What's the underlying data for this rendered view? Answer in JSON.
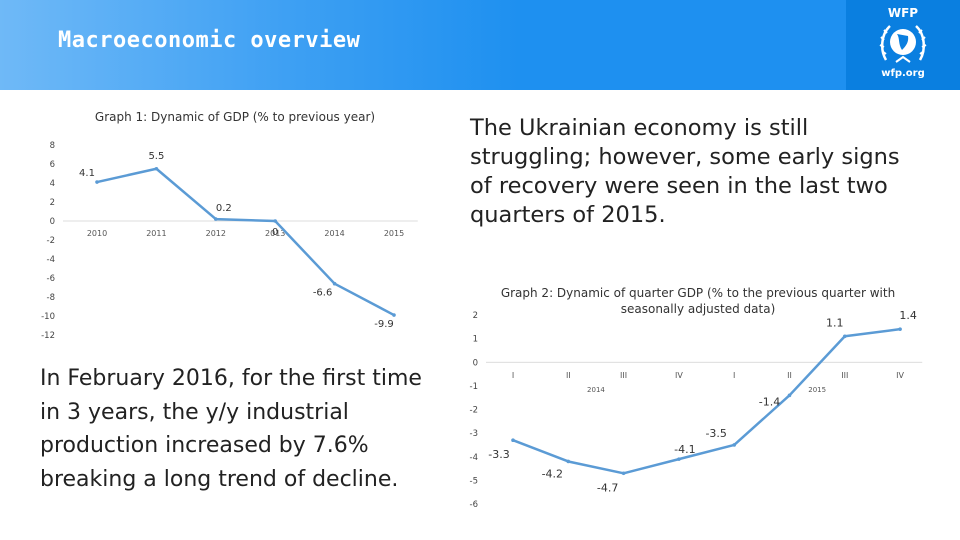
{
  "header": {
    "title": "Macroeconomic overview",
    "logo": {
      "name": "WFP",
      "url": "wfp.org",
      "icon": "wfp-emblem-icon"
    },
    "colors": {
      "bar": "#1e90f0",
      "logo_bg": "#0a7fe0"
    }
  },
  "text": {
    "summary": "The Ukrainian economy is still struggling; however, some early signs of recovery were seen in the last two quarters of 2015.",
    "industry": "In February 2016, for the first time in 3 years, the y/y industrial production increased by 7.6% breaking a long trend of decline."
  },
  "chart_data": [
    {
      "type": "line",
      "title": "Graph 1: Dynamic of GDP (% to previous year)",
      "categories": [
        "2010",
        "2011",
        "2012",
        "2013",
        "2014",
        "2015"
      ],
      "values": [
        4.1,
        5.5,
        0.2,
        0,
        -6.6,
        -9.9
      ],
      "data_labels": [
        "4.1",
        "5.5",
        "0.2",
        "0",
        "-6.6",
        "-9.9"
      ],
      "ylim": [
        -12,
        8
      ],
      "yticks": [
        "8",
        "6",
        "4",
        "2",
        "0",
        "-2",
        "-4",
        "-6",
        "-8",
        "-10",
        "-12"
      ],
      "grid": false,
      "line_color": "#5b9bd5"
    },
    {
      "type": "line",
      "title": "Graph 2: Dynamic of quarter GDP (% to the previous quarter with seasonally adjusted data)",
      "categories": [
        "I",
        "II",
        "III",
        "IV",
        "I",
        "II",
        "III",
        "IV"
      ],
      "category_groups": [
        {
          "label": "2014",
          "start": 0,
          "end": 3
        },
        {
          "label": "2015",
          "start": 4,
          "end": 7
        }
      ],
      "values": [
        -3.3,
        -4.2,
        -4.7,
        -4.1,
        -3.5,
        -1.4,
        1.1,
        1.4
      ],
      "data_labels": [
        "-3.3",
        "-4.2",
        "-4.7",
        "-4.1",
        "-3.5",
        "-1.4",
        "1.1",
        "1.4"
      ],
      "ylim": [
        -6,
        2
      ],
      "yticks": [
        "2",
        "1",
        "0",
        "-1",
        "-2",
        "-3",
        "-4",
        "-5",
        "-6"
      ],
      "grid": false,
      "line_color": "#5b9bd5"
    }
  ]
}
